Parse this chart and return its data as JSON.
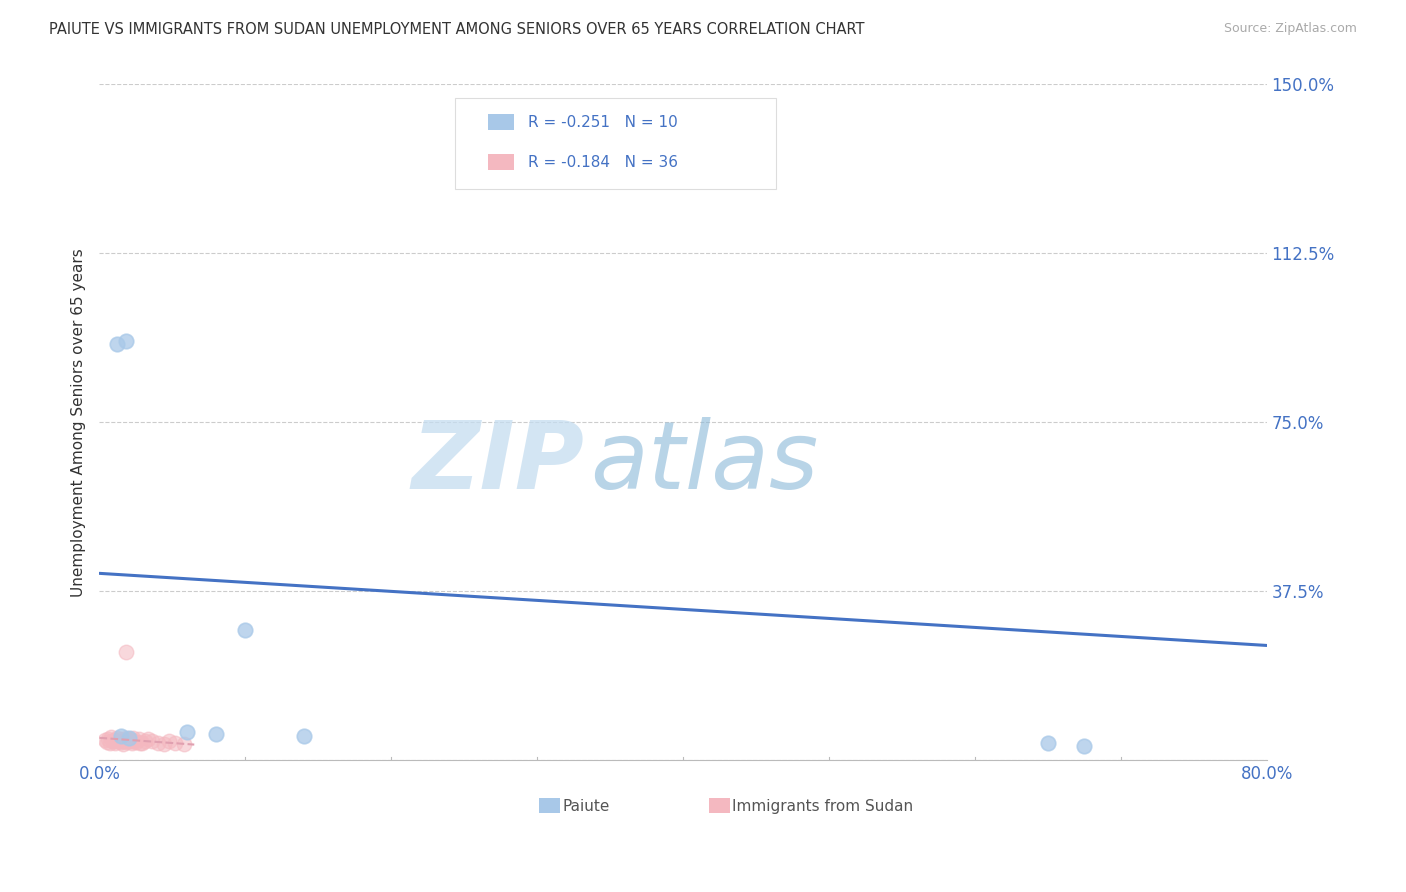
{
  "title": "PAIUTE VS IMMIGRANTS FROM SUDAN UNEMPLOYMENT AMONG SENIORS OVER 65 YEARS CORRELATION CHART",
  "source": "Source: ZipAtlas.com",
  "ylabel": "Unemployment Among Seniors over 65 years",
  "xlim": [
    0.0,
    0.8
  ],
  "ylim": [
    0.0,
    1.5
  ],
  "x_ticks": [
    0.0,
    0.1,
    0.2,
    0.3,
    0.4,
    0.5,
    0.6,
    0.7,
    0.8
  ],
  "x_tick_labels": [
    "0.0%",
    "",
    "",
    "",
    "",
    "",
    "",
    "",
    "80.0%"
  ],
  "y_ticks": [
    0.0,
    0.375,
    0.75,
    1.125,
    1.5
  ],
  "y_tick_labels": [
    "",
    "37.5%",
    "75.0%",
    "112.5%",
    "150.0%"
  ],
  "grid_color": "#cccccc",
  "background_color": "#ffffff",
  "paiute_color": "#a8c8e8",
  "sudan_color": "#f4b8c0",
  "paiute_R": -0.251,
  "paiute_N": 10,
  "sudan_R": -0.184,
  "sudan_N": 36,
  "paiute_line_color": "#4472c4",
  "sudan_line_color": "#e0a0b0",
  "paiute_scatter_x": [
    0.012,
    0.018,
    0.1,
    0.14,
    0.65,
    0.675,
    0.015,
    0.02,
    0.06,
    0.08
  ],
  "paiute_scatter_y": [
    0.925,
    0.93,
    0.29,
    0.055,
    0.038,
    0.032,
    0.055,
    0.05,
    0.062,
    0.058
  ],
  "sudan_scatter_x": [
    0.004,
    0.005,
    0.006,
    0.007,
    0.008,
    0.009,
    0.01,
    0.011,
    0.012,
    0.013,
    0.014,
    0.015,
    0.016,
    0.017,
    0.018,
    0.019,
    0.02,
    0.021,
    0.022,
    0.023,
    0.024,
    0.025,
    0.027,
    0.029,
    0.031,
    0.033,
    0.036,
    0.04,
    0.044,
    0.048,
    0.052,
    0.058,
    0.018,
    0.022,
    0.028,
    0.012
  ],
  "sudan_scatter_y": [
    0.045,
    0.04,
    0.048,
    0.038,
    0.052,
    0.042,
    0.046,
    0.038,
    0.05,
    0.044,
    0.048,
    0.04,
    0.036,
    0.044,
    0.05,
    0.04,
    0.046,
    0.048,
    0.038,
    0.05,
    0.044,
    0.04,
    0.048,
    0.038,
    0.044,
    0.048,
    0.042,
    0.038,
    0.036,
    0.044,
    0.038,
    0.036,
    0.24,
    0.044,
    0.038,
    0.044
  ],
  "watermark_zip": "ZIP",
  "watermark_atlas": "atlas",
  "marker_size": 110
}
